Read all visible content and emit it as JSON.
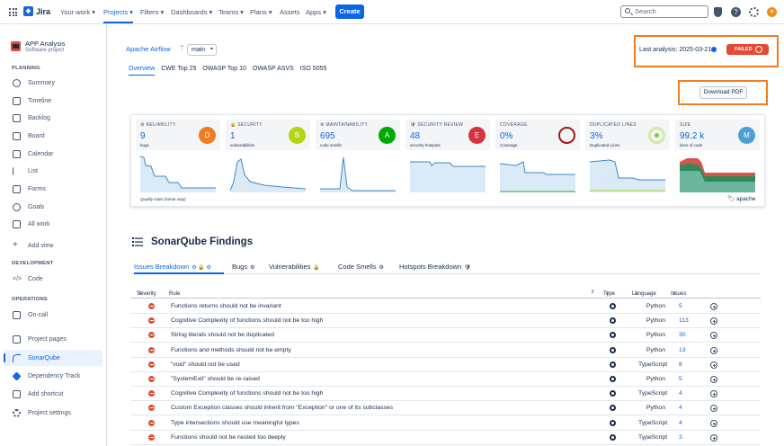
{
  "topnav": {
    "brand": "Jira",
    "items": [
      "Your work",
      "Projects",
      "Filters",
      "Dashboards",
      "Teams",
      "Plans",
      "Assets",
      "Apps"
    ],
    "create_label": "Create",
    "search_placeholder": "Search"
  },
  "sidebar": {
    "project_name": "APP Analysis",
    "project_type": "Software project",
    "planning_label": "PLANNING",
    "planning_items": [
      "Summary",
      "Timeline",
      "Backlog",
      "Board",
      "Calendar",
      "List",
      "Forms",
      "Goals",
      "All work",
      "Add view"
    ],
    "development_label": "DEVELOPMENT",
    "development_items": [
      "Code"
    ],
    "operations_label": "OPERATIONS",
    "operations_items": [
      "On-call"
    ],
    "bottom_items": [
      "Project pages",
      "SonarQube",
      "Dependency Track",
      "Add shortcut",
      "Project settings"
    ]
  },
  "header": {
    "repo": "Apache Airflow",
    "branch": "main",
    "tabs": [
      "Overview",
      "CWE Top 25",
      "OWASP Top 10",
      "OWASP ASVS",
      "ISO 5055"
    ],
    "last_analysis": "Last analysis: 2025-03-21",
    "status": "FAILED",
    "download_label": "Download PDF"
  },
  "metrics": {
    "cards": [
      {
        "label": "RELIABILITY",
        "value": "9",
        "sub": "bugs",
        "grade": "D",
        "grade_color": "#ef7b22"
      },
      {
        "label": "SECURITY",
        "value": "1",
        "sub": "vulnerabilities",
        "grade": "B",
        "grade_color": "#b0d513"
      },
      {
        "label": "MAINTAINABILITY",
        "value": "695",
        "sub": "code smells",
        "grade": "A",
        "grade_color": "#00aa00"
      },
      {
        "label": "SECURITY REVIEW",
        "value": "48",
        "sub": "security hotspots",
        "grade": "E",
        "grade_color": "#d4333f"
      },
      {
        "label": "COVERAGE",
        "value": "0%",
        "sub": "Coverage",
        "grade": "",
        "grade_color": ""
      },
      {
        "label": "DUPLICATED LINES",
        "value": "3%",
        "sub": "Duplicated Lines",
        "grade": "",
        "grade_color": ""
      },
      {
        "label": "SIZE",
        "value": "99.2 k",
        "sub": "lines of code",
        "grade": "M",
        "grade_color": "#4b9fd5"
      }
    ],
    "quality_gate": "Quality Gate (Sonar way)",
    "tag": "apache"
  },
  "findings": {
    "title": "SonarQube Findings",
    "tabs": [
      "Issues Breakdown",
      "Bugs",
      "Vulnerabilities",
      "Code Smells",
      "Hotspots Breakdown"
    ],
    "columns": [
      "Severity",
      "Rule",
      "Type",
      "Language",
      "Issues"
    ],
    "rows": [
      {
        "rule": "Functions returns should not be invariant",
        "language": "Python",
        "issues": "5"
      },
      {
        "rule": "Cognitive Complexity of functions should not be too high",
        "language": "Python",
        "issues": "113"
      },
      {
        "rule": "String literals should not be duplicated",
        "language": "Python",
        "issues": "30"
      },
      {
        "rule": "Functions and methods should not be empty",
        "language": "Python",
        "issues": "13"
      },
      {
        "rule": "\"void\" should not be used",
        "language": "TypeScript",
        "issues": "8"
      },
      {
        "rule": "\"SystemExit\" should be re-raised",
        "language": "Python",
        "issues": "5"
      },
      {
        "rule": "Cognitive Complexity of functions should not be too high",
        "language": "TypeScript",
        "issues": "4"
      },
      {
        "rule": "Custom Exception classes should inherit from \"Exception\" or one of its subclasses",
        "language": "Python",
        "issues": "4"
      },
      {
        "rule": "Type intersections should use meaningful types",
        "language": "TypeScript",
        "issues": "4"
      },
      {
        "rule": "Functions should not be nested too deeply",
        "language": "TypeScript",
        "issues": "3"
      }
    ]
  }
}
